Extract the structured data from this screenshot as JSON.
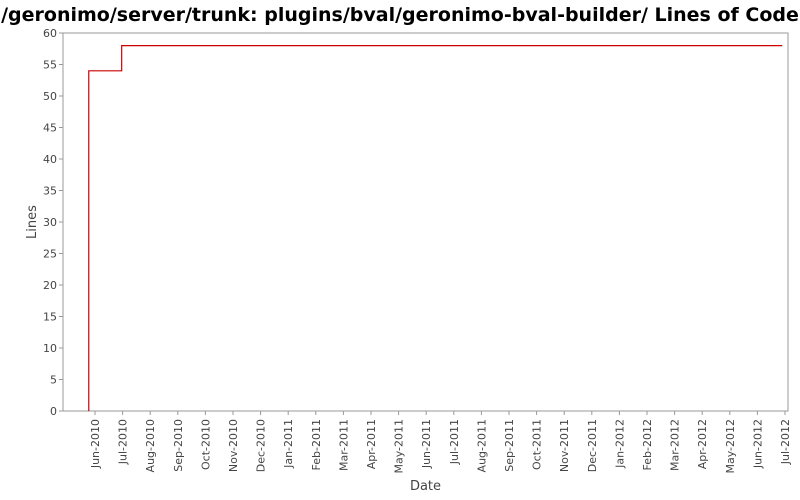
{
  "chart_data": {
    "type": "line",
    "title": "/geronimo/server/trunk: plugins/bval/geronimo-bval-builder/ Lines of Code",
    "xlabel": "Date",
    "ylabel": "Lines",
    "ylim": [
      0,
      60
    ],
    "y_ticks": [
      0,
      5,
      10,
      15,
      20,
      25,
      30,
      35,
      40,
      45,
      50,
      55,
      60
    ],
    "x_ticks": [
      "Jun-2010",
      "Jul-2010",
      "Aug-2010",
      "Sep-2010",
      "Oct-2010",
      "Nov-2010",
      "Dec-2010",
      "Jan-2011",
      "Feb-2011",
      "Mar-2011",
      "Apr-2011",
      "May-2011",
      "Jun-2011",
      "Jul-2011",
      "Aug-2011",
      "Sep-2011",
      "Oct-2011",
      "Nov-2011",
      "Dec-2011",
      "Jan-2012",
      "Feb-2012",
      "Mar-2012",
      "Apr-2012",
      "May-2012",
      "Jun-2012",
      "Jul-2012"
    ],
    "grid": false,
    "legend": "none",
    "line_color": "#cc0000",
    "series": [
      {
        "step": true,
        "points": [
          {
            "x": "2010-05-25",
            "y": 0
          },
          {
            "x": "2010-05-25",
            "y": 54
          },
          {
            "x": "2010-06-30",
            "y": 58
          },
          {
            "x": "2012-06-28",
            "y": 58
          }
        ]
      }
    ]
  }
}
